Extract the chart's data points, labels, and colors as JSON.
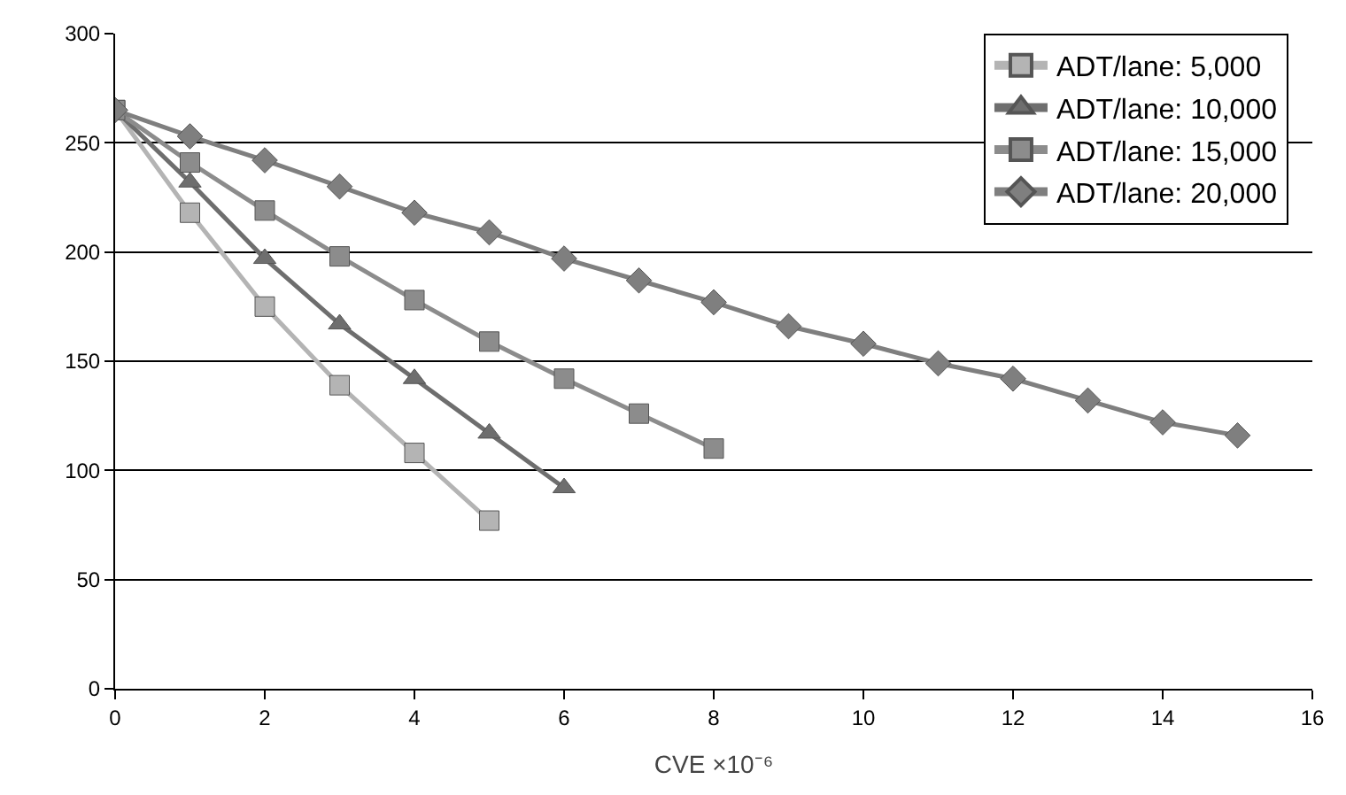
{
  "chart_data": {
    "type": "line",
    "xlabel": "CVE ×10⁻⁶",
    "x": [
      0,
      1,
      2,
      3,
      4,
      5,
      6,
      7,
      8,
      9,
      10,
      11,
      12,
      13,
      14,
      15
    ],
    "xlim": [
      0,
      16
    ],
    "xticks": [
      0,
      2,
      4,
      6,
      8,
      10,
      12,
      14,
      16
    ],
    "ylim": [
      0,
      300
    ],
    "yticks": [
      0,
      50,
      100,
      150,
      200,
      250,
      300
    ],
    "grid": "y",
    "legend": "top right",
    "line_style": "solid",
    "series": [
      {
        "name": "ADT/lane: 5,000",
        "color": "#b4b4b4",
        "marker": "square",
        "x": [
          0,
          1,
          2,
          3,
          4,
          5
        ],
        "values": [
          265,
          218,
          175,
          139,
          108,
          77
        ]
      },
      {
        "name": "ADT/lane: 10,000",
        "color": "#6e6e6e",
        "marker": "triangle",
        "x": [
          0,
          1,
          2,
          3,
          4,
          5,
          6
        ],
        "values": [
          265,
          232,
          197,
          167,
          142,
          117,
          92
        ]
      },
      {
        "name": "ADT/lane: 15,000",
        "color": "#8c8c8c",
        "marker": "square",
        "x": [
          0,
          1,
          2,
          3,
          4,
          5,
          6,
          7,
          8
        ],
        "values": [
          265,
          241,
          219,
          198,
          178,
          159,
          142,
          126,
          110
        ]
      },
      {
        "name": "ADT/lane: 20,000",
        "color": "#7f7f7f",
        "marker": "diamond",
        "values": [
          265,
          253,
          242,
          230,
          218,
          209,
          197,
          187,
          177,
          166,
          158,
          149,
          142,
          132,
          122,
          116
        ]
      }
    ]
  }
}
